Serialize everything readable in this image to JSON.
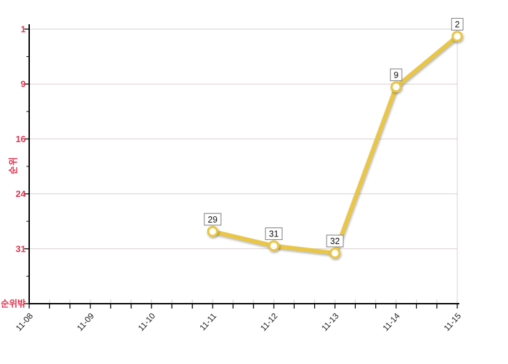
{
  "chart_data": {
    "type": "line",
    "title": "",
    "xlabel": "",
    "ylabel": "순위",
    "x": [
      "11-08",
      "11-09",
      "11-10",
      "11-11",
      "11-12",
      "11-13",
      "11-14",
      "11-15"
    ],
    "series": [
      {
        "name": "순위",
        "values": [
          null,
          null,
          null,
          29,
          31,
          32,
          9,
          2
        ]
      }
    ],
    "point_labels": [
      "29",
      "31",
      "32",
      "9",
      "2"
    ],
    "y_axis": {
      "inverted": true,
      "range": [
        1,
        39
      ],
      "tick_labels": [
        "1",
        "9",
        "16",
        "24",
        "31",
        "순위밖"
      ],
      "out_of_rank_label": "순위밖"
    },
    "grid": true,
    "legend_position": "none",
    "colors": {
      "line": "#e9c647",
      "marker_fill": "#ffffff",
      "marker_ring": "#e9c647",
      "axis": "#000000",
      "y_tick_label": "#e0334f",
      "x_tick_label": "#1a1a1a",
      "grid": "#d8cfcf",
      "inner_tick": "#cfcaca",
      "label_box_border": "#7a7a7a",
      "label_box_fill": "#ffffff",
      "label_text": "#111111"
    }
  }
}
